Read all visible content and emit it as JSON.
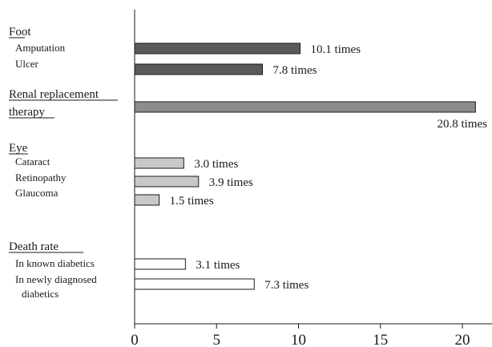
{
  "chart_data": {
    "type": "bar",
    "orientation": "horizontal",
    "title": "",
    "xlabel": "",
    "ylabel": "",
    "xlim": [
      0,
      22
    ],
    "xticks": [
      0,
      5,
      10,
      15,
      20
    ],
    "grid": false,
    "value_suffix": " times",
    "groups": [
      {
        "name": "Foot",
        "color": "#5a5a5a",
        "items": [
          {
            "label": "Amputation",
            "value": 10.1
          },
          {
            "label": "Ulcer",
            "value": 7.8
          }
        ]
      },
      {
        "name": "Renal replacement therapy",
        "name_lines": [
          "Renal replacement",
          "therapy"
        ],
        "color": "#8c8c8c",
        "items": [
          {
            "label": "",
            "value": 20.8
          }
        ]
      },
      {
        "name": "Eye",
        "color": "#c8c8c8",
        "items": [
          {
            "label": "Cataract",
            "value": 3.0
          },
          {
            "label": "Retinopathy",
            "value": 3.9
          },
          {
            "label": "Glaucoma",
            "value": 1.5
          }
        ]
      },
      {
        "name": "Death rate",
        "color": "#ffffff",
        "items": [
          {
            "label": "In known diabetics",
            "value": 3.1
          },
          {
            "label": "In newly diagnosed diabetics",
            "label_lines": [
              "In newly diagnosed",
              "diabetics"
            ],
            "value": 7.3
          }
        ]
      }
    ]
  }
}
